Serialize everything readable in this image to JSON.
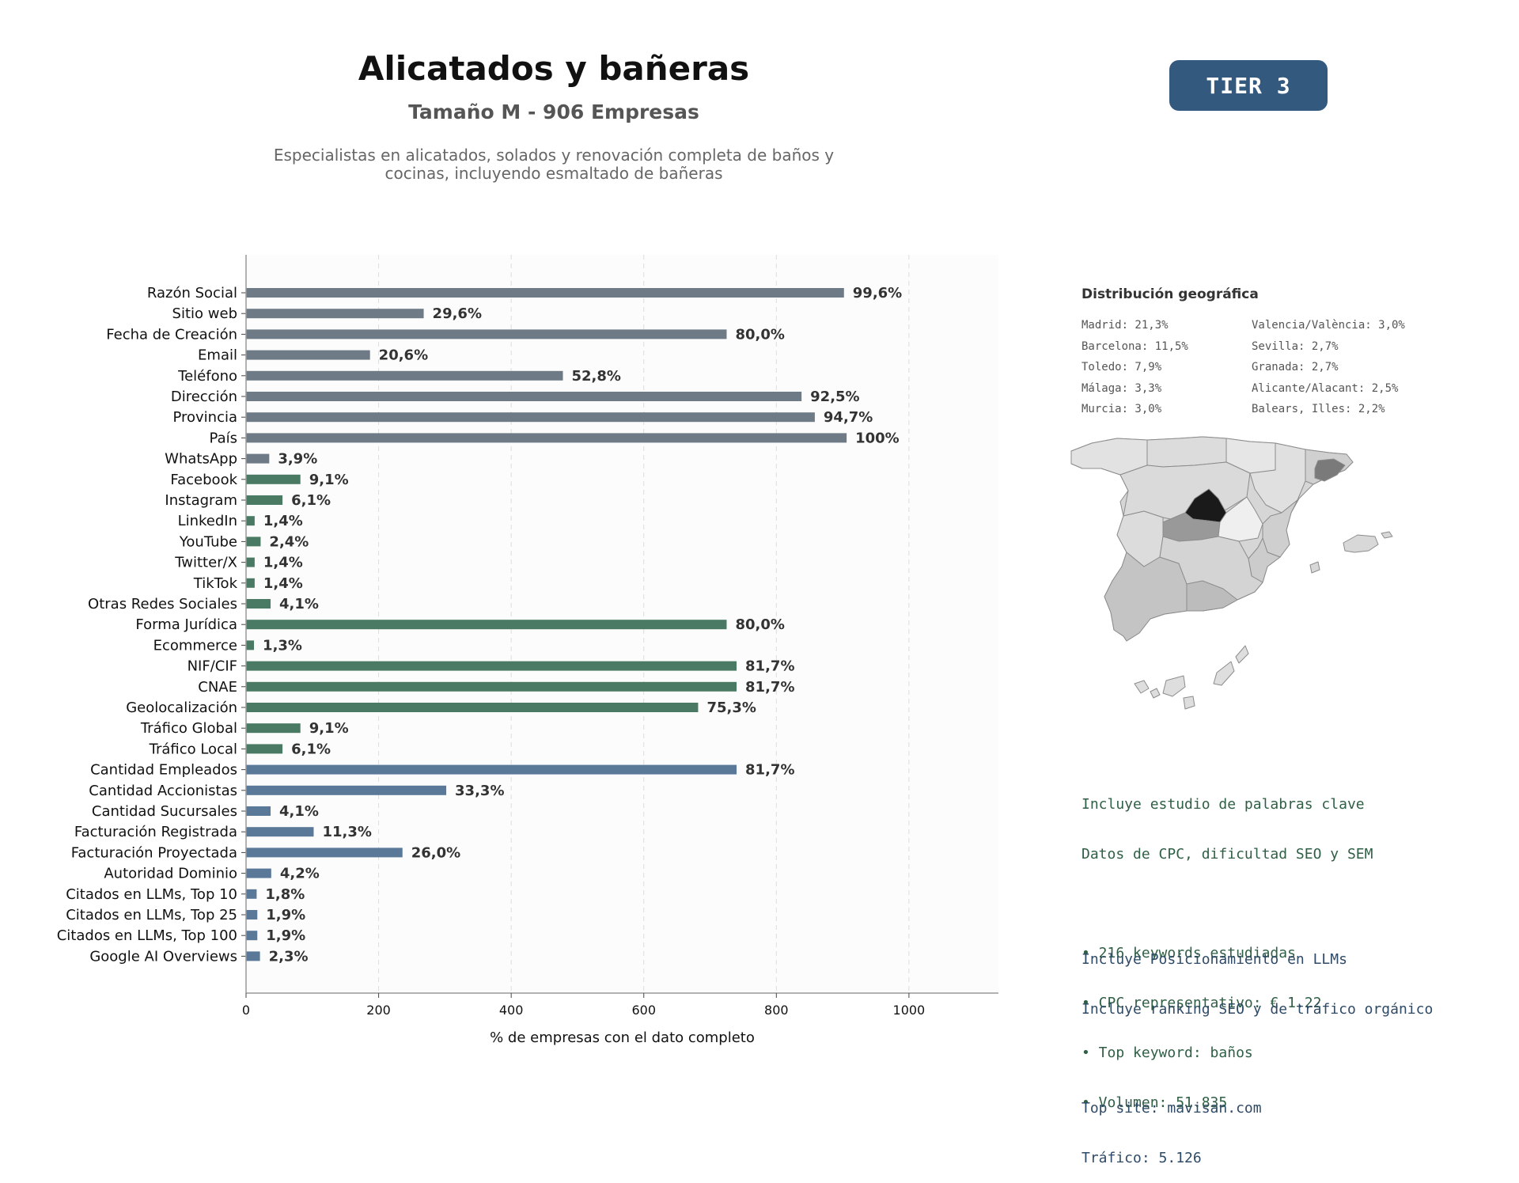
{
  "header": {
    "title": "Alicatados y bañeras",
    "subtitle": "Tamaño M - 906 Empresas",
    "description_line1": "Especialistas en alicatados, solados y renovación completa de baños y",
    "description_line2": "cocinas, incluyendo esmaltado de bañeras",
    "tier": "TIER 3"
  },
  "colors": {
    "group_basic": "#6e7a85",
    "group_digital": "#4a7a63",
    "group_business": "#5a7898",
    "map_highlight_dark": "#1a1a1a",
    "map_highlight_mid": "#999999"
  },
  "chart_data": {
    "type": "bar",
    "orientation": "horizontal",
    "xlabel": "% de empresas con el dato completo",
    "ylabel": "",
    "xlim": [
      0,
      1135
    ],
    "xticks": [
      0,
      200,
      400,
      600,
      800,
      1000
    ],
    "grid": "vertical dashed",
    "bars": [
      {
        "category": "Razón Social",
        "value": 902,
        "label": "99,6%",
        "group": "basic"
      },
      {
        "category": "Sitio web",
        "value": 268,
        "label": "29,6%",
        "group": "basic"
      },
      {
        "category": "Fecha de Creación",
        "value": 725,
        "label": "80,0%",
        "group": "basic"
      },
      {
        "category": "Email",
        "value": 187,
        "label": "20,6%",
        "group": "basic"
      },
      {
        "category": "Teléfono",
        "value": 478,
        "label": "52,8%",
        "group": "basic"
      },
      {
        "category": "Dirección",
        "value": 838,
        "label": "92,5%",
        "group": "basic"
      },
      {
        "category": "Provincia",
        "value": 858,
        "label": "94,7%",
        "group": "basic"
      },
      {
        "category": "País",
        "value": 906,
        "label": "100%",
        "group": "basic"
      },
      {
        "category": "WhatsApp",
        "value": 35,
        "label": "3,9%",
        "group": "basic"
      },
      {
        "category": "Facebook",
        "value": 82,
        "label": "9,1%",
        "group": "digital"
      },
      {
        "category": "Instagram",
        "value": 55,
        "label": "6,1%",
        "group": "digital"
      },
      {
        "category": "LinkedIn",
        "value": 13,
        "label": "1,4%",
        "group": "digital"
      },
      {
        "category": "YouTube",
        "value": 22,
        "label": "2,4%",
        "group": "digital"
      },
      {
        "category": "Twitter/X",
        "value": 13,
        "label": "1,4%",
        "group": "digital"
      },
      {
        "category": "TikTok",
        "value": 13,
        "label": "1,4%",
        "group": "digital"
      },
      {
        "category": "Otras Redes Sociales",
        "value": 37,
        "label": "4,1%",
        "group": "digital"
      },
      {
        "category": "Forma Jurídica",
        "value": 725,
        "label": "80,0%",
        "group": "digital"
      },
      {
        "category": "Ecommerce",
        "value": 12,
        "label": "1,3%",
        "group": "digital"
      },
      {
        "category": "NIF/CIF",
        "value": 740,
        "label": "81,7%",
        "group": "digital"
      },
      {
        "category": "CNAE",
        "value": 740,
        "label": "81,7%",
        "group": "digital"
      },
      {
        "category": "Geolocalización",
        "value": 682,
        "label": "75,3%",
        "group": "digital"
      },
      {
        "category": "Tráfico Global",
        "value": 82,
        "label": "9,1%",
        "group": "digital"
      },
      {
        "category": "Tráfico Local",
        "value": 55,
        "label": "6,1%",
        "group": "digital"
      },
      {
        "category": "Cantidad Empleados",
        "value": 740,
        "label": "81,7%",
        "group": "business"
      },
      {
        "category": "Cantidad Accionistas",
        "value": 302,
        "label": "33,3%",
        "group": "business"
      },
      {
        "category": "Cantidad Sucursales",
        "value": 37,
        "label": "4,1%",
        "group": "business"
      },
      {
        "category": "Facturación Registrada",
        "value": 102,
        "label": "11,3%",
        "group": "business"
      },
      {
        "category": "Facturación Proyectada",
        "value": 236,
        "label": "26,0%",
        "group": "business"
      },
      {
        "category": "Autoridad Dominio",
        "value": 38,
        "label": "4,2%",
        "group": "business"
      },
      {
        "category": "Citados en LLMs, Top 10",
        "value": 16,
        "label": "1,8%",
        "group": "business"
      },
      {
        "category": "Citados en LLMs, Top 25",
        "value": 17,
        "label": "1,9%",
        "group": "business"
      },
      {
        "category": "Citados en LLMs, Top 100",
        "value": 17,
        "label": "1,9%",
        "group": "business"
      },
      {
        "category": "Google AI Overviews",
        "value": 21,
        "label": "2,3%",
        "group": "business"
      }
    ]
  },
  "geo": {
    "title": "Distribución geográfica",
    "items": [
      "Madrid: 21,3%",
      "Barcelona: 11,5%",
      "Toledo: 7,9%",
      "Málaga: 3,3%",
      "Murcia: 3,0%",
      "Valencia/València: 3,0%",
      "Sevilla: 2,7%",
      "Granada: 2,7%",
      "Alicante/Alacant: 2,5%",
      "Balears, Illes: 2,2%"
    ]
  },
  "keywords": {
    "line1": "Incluye estudio de palabras clave",
    "line2": "Datos de CPC, dificultad SEO y SEM",
    "bullet1": "• 216 keywords estudiadas",
    "bullet2": "• CPC representativo: € 1.22",
    "bullet3": "• Top keyword: baños",
    "bullet4": "• Volumen: 51.835"
  },
  "llm": {
    "line1": "Incluye Posicionamiento en LLMs",
    "line2": "Incluye ranking SEO y de tráfico orgánico",
    "top_site": "Top site: mavisan.com",
    "traffic": "Tráfico: 5.126"
  }
}
